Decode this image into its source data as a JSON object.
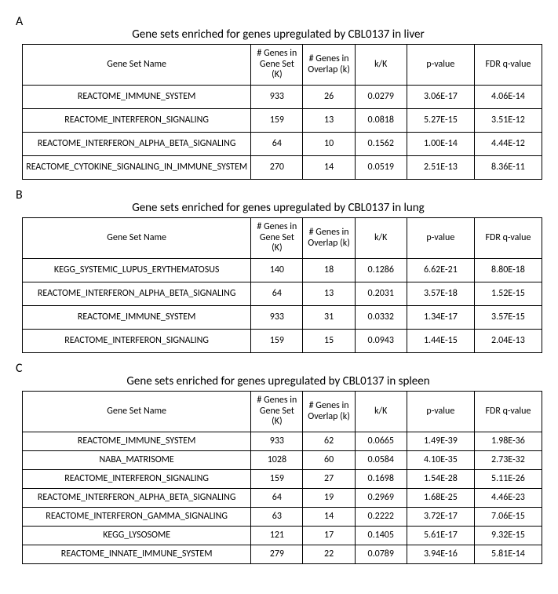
{
  "panels": [
    {
      "label": "A",
      "title": "Gene sets enriched for genes upregulated by CBL0137 in liver",
      "dense": false,
      "columns": [
        "Gene Set Name",
        "# Genes in Gene Set (K)",
        "# Genes in Overlap (k)",
        "k/K",
        "p-value",
        "FDR q-value"
      ],
      "rows": [
        [
          "REACTOME_IMMUNE_SYSTEM",
          "933",
          "26",
          "0.0279",
          "3.06E-17",
          "4.06E-14"
        ],
        [
          "REACTOME_INTERFERON_SIGNALING",
          "159",
          "13",
          "0.0818",
          "5.27E-15",
          "3.51E-12"
        ],
        [
          "REACTOME_INTERFERON_ALPHA_BETA_SIGNALING",
          "64",
          "10",
          "0.1562",
          "1.00E-14",
          "4.44E-12"
        ],
        [
          "REACTOME_CYTOKINE_SIGNALING_IN_IMMUNE_SYSTEM",
          "270",
          "14",
          "0.0519",
          "2.51E-13",
          "8.36E-11"
        ]
      ]
    },
    {
      "label": "B",
      "title": "Gene sets enriched for genes upregulated by CBL0137 in lung",
      "dense": false,
      "columns": [
        "Gene Set Name",
        "# Genes in Gene Set (K)",
        "# Genes in Overlap (k)",
        "k/K",
        "p-value",
        "FDR q-value"
      ],
      "rows": [
        [
          "KEGG_SYSTEMIC_LUPUS_ERYTHEMATOSUS",
          "140",
          "18",
          "0.1286",
          "6.62E-21",
          "8.80E-18"
        ],
        [
          "REACTOME_INTERFERON_ALPHA_BETA_SIGNALING",
          "64",
          "13",
          "0.2031",
          "3.57E-18",
          "1.52E-15"
        ],
        [
          "REACTOME_IMMUNE_SYSTEM",
          "933",
          "31",
          "0.0332",
          "1.34E-17",
          "3.57E-15"
        ],
        [
          "REACTOME_INTERFERON_SIGNALING",
          "159",
          "15",
          "0.0943",
          "1.44E-15",
          "2.04E-13"
        ]
      ]
    },
    {
      "label": "C",
      "title": "Gene sets enriched for genes upregulated by CBL0137 in spleen",
      "dense": true,
      "columns": [
        "Gene Set Name",
        "# Genes in Gene Set (K)",
        "# Genes in Overlap (k)",
        "k/K",
        "p-value",
        "FDR q-value"
      ],
      "rows": [
        [
          "REACTOME_IMMUNE_SYSTEM",
          "933",
          "62",
          "0.0665",
          "1.49E-39",
          "1.98E-36"
        ],
        [
          "NABA_MATRISOME",
          "1028",
          "60",
          "0.0584",
          "4.10E-35",
          "2.73E-32"
        ],
        [
          "REACTOME_INTERFERON_SIGNALING",
          "159",
          "27",
          "0.1698",
          "1.54E-28",
          "5.11E-26"
        ],
        [
          "REACTOME_INTERFERON_ALPHA_BETA_SIGNALING",
          "64",
          "19",
          "0.2969",
          "1.68E-25",
          "4.46E-23"
        ],
        [
          "REACTOME_INTERFERON_GAMMA_SIGNALING",
          "63",
          "14",
          "0.2222",
          "3.72E-17",
          "7.06E-15"
        ],
        [
          "KEGG_LYSOSOME",
          "121",
          "17",
          "0.1405",
          "5.61E-17",
          "9.32E-15"
        ],
        [
          "REACTOME_INNATE_IMMUNE_SYSTEM",
          "279",
          "22",
          "0.0789",
          "3.94E-16",
          "5.81E-14"
        ]
      ]
    }
  ]
}
